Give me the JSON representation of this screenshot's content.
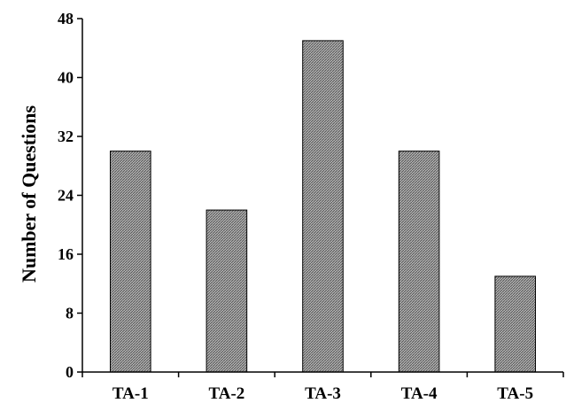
{
  "chart_data": {
    "type": "bar",
    "title": "",
    "xlabel": "",
    "ylabel": "Number of Questions",
    "categories": [
      "TA-1",
      "TA-2",
      "TA-3",
      "TA-4",
      "TA-5"
    ],
    "values": [
      30,
      22,
      45,
      30,
      13
    ],
    "ylim": [
      0,
      48
    ],
    "yticks": [
      "0",
      "8",
      "16",
      "24",
      "32",
      "40",
      "48"
    ],
    "grid": false,
    "legend": "none",
    "bar_fill": "#8c8c8c",
    "bar_stroke": "#000000"
  }
}
